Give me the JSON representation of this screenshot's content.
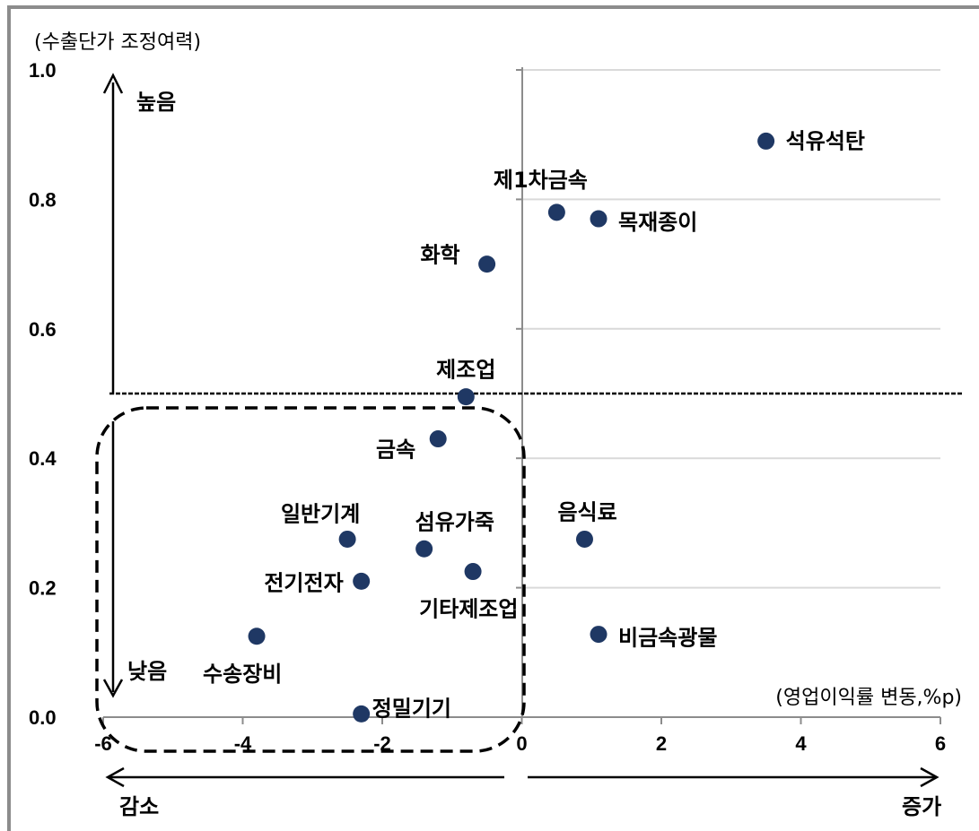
{
  "chart_data": {
    "type": "scatter",
    "ylabel": "(수출단가 조정여력)",
    "xlabel": "(영업이익률 변동,%p)",
    "xlim": [
      -6,
      6
    ],
    "ylim": [
      0,
      1.0
    ],
    "x_ticks": [
      "-6",
      "-4",
      "-2",
      "0",
      "2",
      "4",
      "6"
    ],
    "y_ticks": [
      "0.0",
      "0.2",
      "0.4",
      "0.6",
      "0.8",
      "1.0"
    ],
    "grid": true,
    "threshold_y": 0.5,
    "points": [
      {
        "label": "석유석탄",
        "x": 3.5,
        "y": 0.89
      },
      {
        "label": "제1차금속",
        "x": 0.5,
        "y": 0.78
      },
      {
        "label": "목재종이",
        "x": 1.1,
        "y": 0.77
      },
      {
        "label": "화학",
        "x": -0.5,
        "y": 0.7
      },
      {
        "label": "제조업",
        "x": -0.8,
        "y": 0.495
      },
      {
        "label": "금속",
        "x": -1.2,
        "y": 0.43
      },
      {
        "label": "음식료",
        "x": 0.9,
        "y": 0.275
      },
      {
        "label": "일반기계",
        "x": -2.5,
        "y": 0.275
      },
      {
        "label": "섬유가죽",
        "x": -1.4,
        "y": 0.26
      },
      {
        "label": "기타제조업",
        "x": -0.7,
        "y": 0.225
      },
      {
        "label": "전기전자",
        "x": -2.3,
        "y": 0.21
      },
      {
        "label": "비금속광물",
        "x": 1.1,
        "y": 0.128
      },
      {
        "label": "수송장비",
        "x": -3.8,
        "y": 0.125
      },
      {
        "label": "정밀기기",
        "x": -2.3,
        "y": 0.005
      }
    ],
    "annotations": {
      "high": "높음",
      "low": "낮음",
      "decrease": "감소",
      "increase": "증가"
    }
  }
}
